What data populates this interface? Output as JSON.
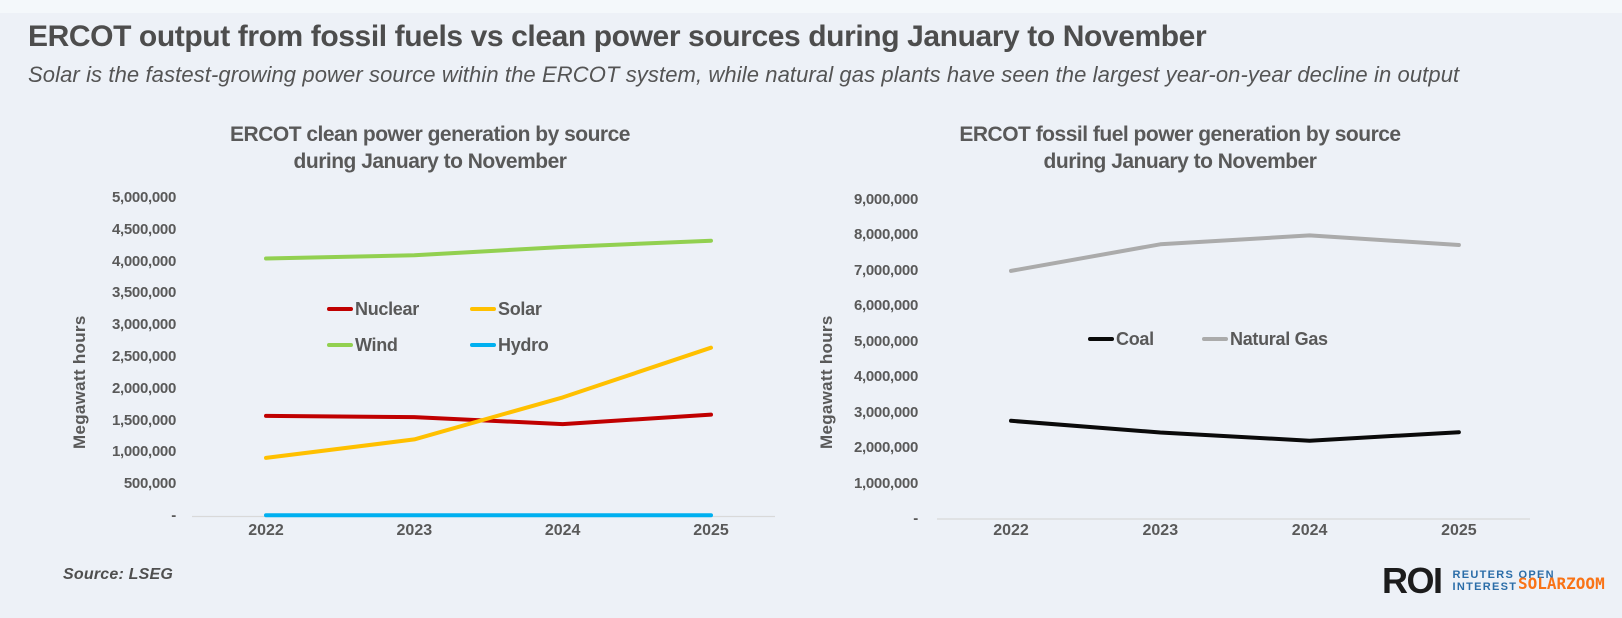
{
  "page": {
    "title": "ERCOT output from fossil fuels vs clean power sources during January to November",
    "subtitle": "Solar is the fastest-growing power source within the ERCOT system, while natural gas plants have seen the largest year-on-year decline in output",
    "source_note": "Source:  LSEG",
    "watermark": "SOLARZOOM",
    "logo": {
      "abbr": "ROI",
      "line1": "REUTERS OPEN",
      "line2": "INTEREST"
    }
  },
  "colors": {
    "background": "#edf1f7",
    "heading_text": "#4d4d4d",
    "chart_text": "#595959",
    "axis_line": "#d9d9d9",
    "logo_black": "#1c1c1c",
    "logo_blue": "#2b6da8",
    "watermark_orange": "#f97316"
  },
  "chart_data": [
    {
      "id": "clean",
      "type": "line",
      "title_line1": "ERCOT clean power generation by source",
      "title_line2": "during January to November",
      "ylabel": "Megawatt hours",
      "xlabel": "",
      "categories": [
        "2022",
        "2023",
        "2024",
        "2025"
      ],
      "series": [
        {
          "name": "Nuclear",
          "color": "#c00000",
          "values": [
            1580000,
            1560000,
            1450000,
            1600000
          ]
        },
        {
          "name": "Solar",
          "color": "#ffc000",
          "values": [
            920000,
            1210000,
            1870000,
            2650000
          ]
        },
        {
          "name": "Wind",
          "color": "#92d050",
          "values": [
            4050000,
            4100000,
            4230000,
            4330000
          ]
        },
        {
          "name": "Hydro",
          "color": "#00b0f0",
          "values": [
            20000,
            20000,
            20000,
            20000
          ]
        }
      ],
      "ylim": [
        0,
        5000000
      ],
      "ytick_labels": [
        "5,000,000",
        "4,500,000",
        "4,000,000",
        "3,500,000",
        "3,000,000",
        "2,500,000",
        "2,000,000",
        "1,500,000",
        "1,000,000",
        "500,000",
        "-"
      ],
      "grid": false,
      "legend_position": "center"
    },
    {
      "id": "fossil",
      "type": "line",
      "title_line1": "ERCOT fossil fuel power generation by source",
      "title_line2": "during January to November",
      "ylabel": "Megawatt hours",
      "xlabel": "",
      "categories": [
        "2022",
        "2023",
        "2024",
        "2025"
      ],
      "series": [
        {
          "name": "Coal",
          "color": "#0a0a0a",
          "values": [
            2770000,
            2440000,
            2210000,
            2450000
          ]
        },
        {
          "name": "Natural Gas",
          "color": "#ababab",
          "values": [
            7000000,
            7750000,
            8000000,
            7730000
          ]
        }
      ],
      "ylim": [
        0,
        9000000
      ],
      "ytick_labels": [
        "9,000,000",
        "8,000,000",
        "7,000,000",
        "6,000,000",
        "5,000,000",
        "4,000,000",
        "3,000,000",
        "2,000,000",
        "1,000,000",
        "-"
      ],
      "grid": false,
      "legend_position": "center"
    }
  ]
}
